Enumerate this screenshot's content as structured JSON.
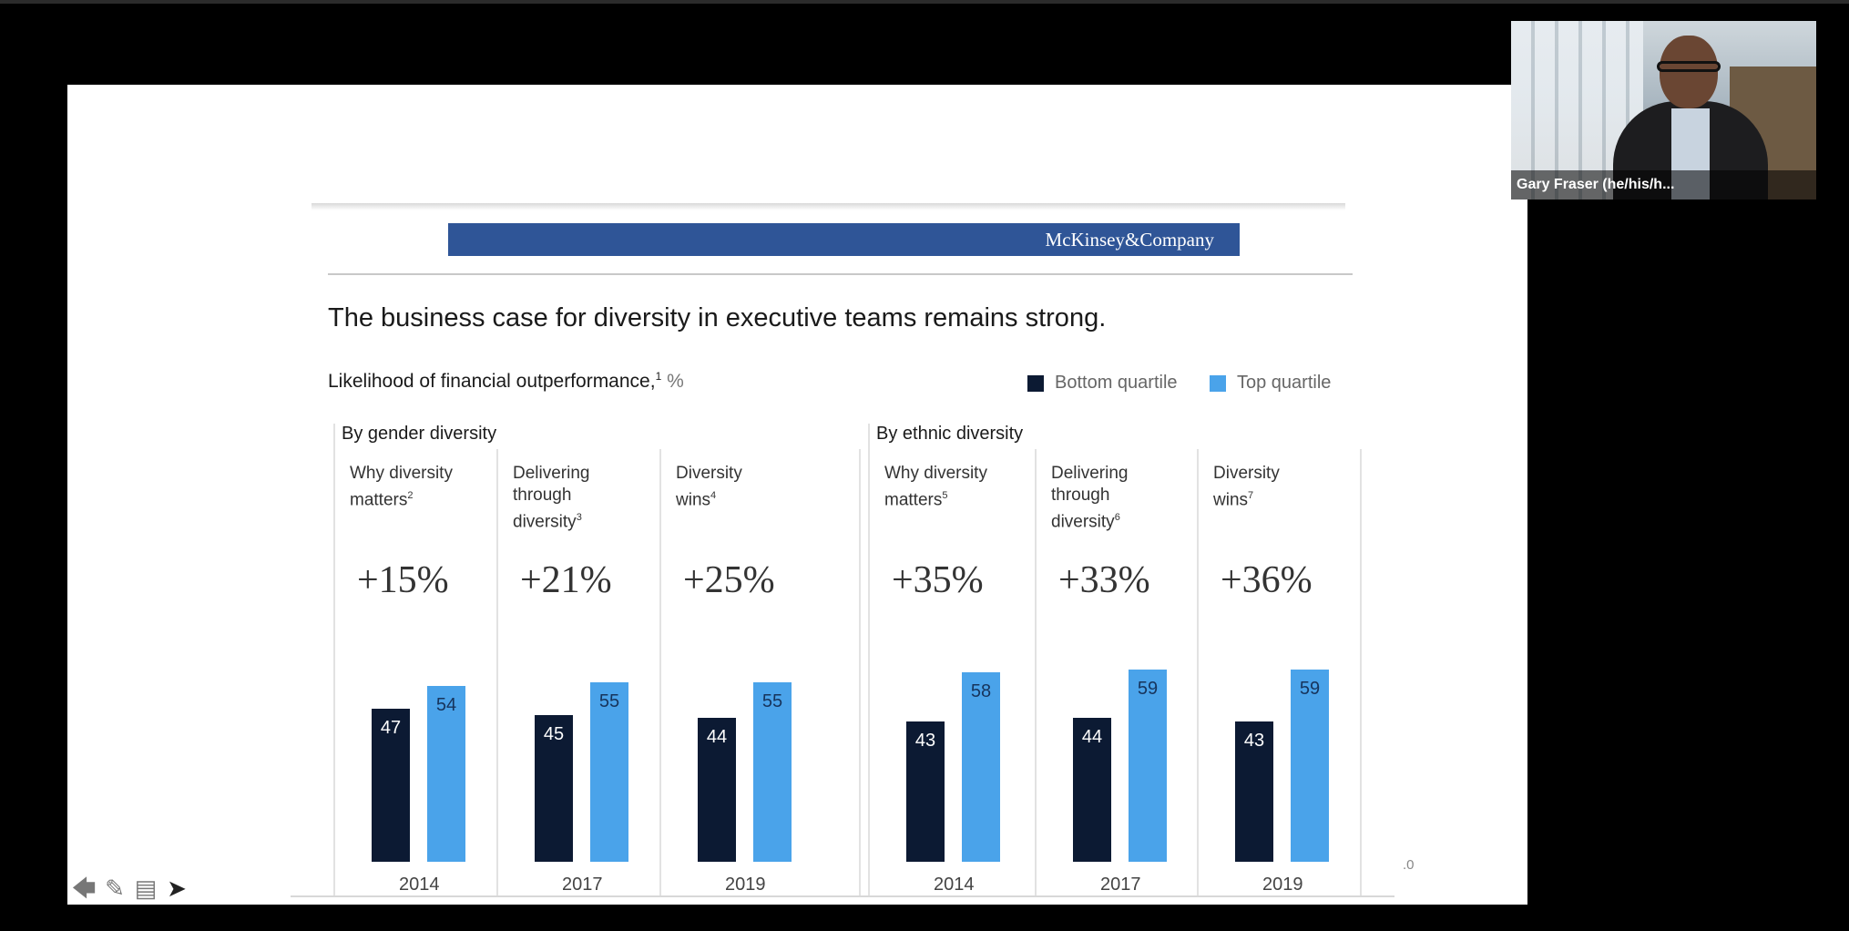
{
  "participant": {
    "name": "Gary Fraser (he/his/h..."
  },
  "slide": {
    "brand": "McKinsey&Company",
    "headline": "The business case for diversity in executive teams remains strong.",
    "subhead": {
      "text": "Likelihood of financial outperformance,",
      "superscript": "1",
      "unit": "%"
    },
    "legend": [
      {
        "label": "Bottom quartile",
        "color": "#0c1a33"
      },
      {
        "label": "Top quartile",
        "color": "#4aa3ea"
      }
    ],
    "stray_mark": ".0"
  },
  "toolbar": {
    "icons": [
      "back-arrow-icon",
      "pencil-icon",
      "notes-icon",
      "pointer-icon"
    ]
  },
  "chart_data": {
    "type": "bar",
    "groups": [
      {
        "title": "By gender diversity",
        "columns": [
          {
            "lines": [
              "Why diversity",
              "matters"
            ],
            "sup": "2",
            "delta": "+15%",
            "year": "2014",
            "bottom": 47,
            "top": 54
          },
          {
            "lines": [
              "Delivering",
              "through",
              "diversity"
            ],
            "sup": "3",
            "delta": "+21%",
            "year": "2017",
            "bottom": 45,
            "top": 55
          },
          {
            "lines": [
              "Diversity",
              "wins"
            ],
            "sup": "4",
            "delta": "+25%",
            "year": "2019",
            "bottom": 44,
            "top": 55
          }
        ]
      },
      {
        "title": "By ethnic diversity",
        "columns": [
          {
            "lines": [
              "Why diversity",
              "matters"
            ],
            "sup": "5",
            "delta": "+35%",
            "year": "2014",
            "bottom": 43,
            "top": 58
          },
          {
            "lines": [
              "Delivering",
              "through",
              "diversity"
            ],
            "sup": "6",
            "delta": "+33%",
            "year": "2017",
            "bottom": 44,
            "top": 59
          },
          {
            "lines": [
              "Diversity",
              "wins"
            ],
            "sup": "7",
            "delta": "+36%",
            "year": "2019",
            "bottom": 43,
            "top": 59
          }
        ]
      }
    ]
  }
}
